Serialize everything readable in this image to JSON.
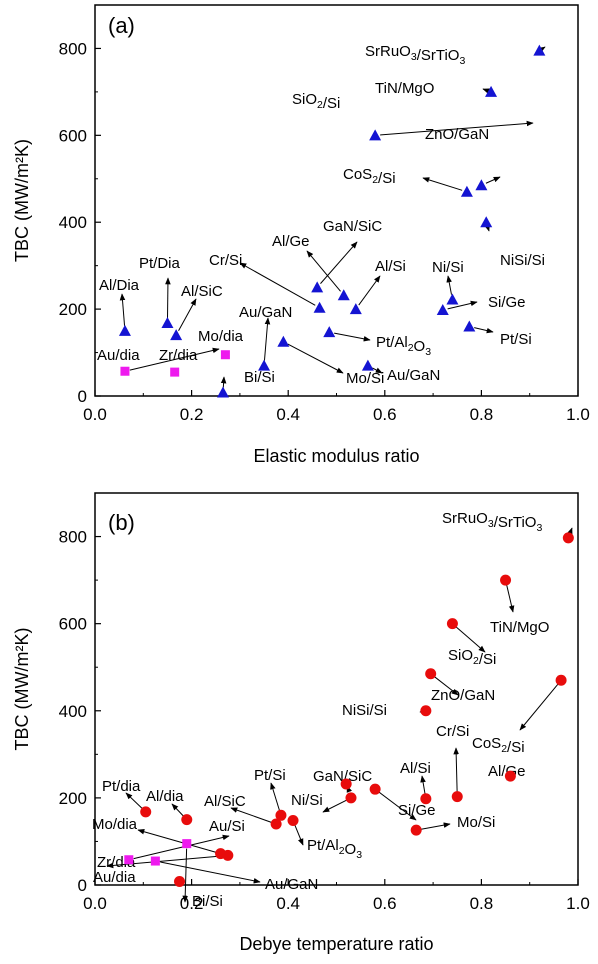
{
  "chart_data": [
    {
      "type": "scatter",
      "panel_label": "(a)",
      "xlabel": "Elastic modulus ratio",
      "ylabel": "TBC (MW/m²K)",
      "xlim": [
        0.0,
        1.0
      ],
      "ylim": [
        0,
        900
      ],
      "xticks": [
        "0.0",
        "0.2",
        "0.4",
        "0.6",
        "0.8",
        "1.0"
      ],
      "yticks": [
        "0",
        "200",
        "400",
        "600",
        "800"
      ],
      "grid": false,
      "series": [
        {
          "marker": "triangle",
          "color": "#1414d2",
          "points": [
            {
              "x": 0.92,
              "y": 795,
              "label": "SrRuO3/SrTiO3"
            },
            {
              "x": 0.82,
              "y": 700,
              "label": "TiN/MgO"
            },
            {
              "x": 0.58,
              "y": 600,
              "label": "SiO2/Si"
            },
            {
              "x": 0.8,
              "y": 485,
              "label": "ZnO/GaN"
            },
            {
              "x": 0.77,
              "y": 470,
              "label": "CoS2/Si"
            },
            {
              "x": 0.81,
              "y": 400,
              "label": "NiSi/Si"
            },
            {
              "x": 0.46,
              "y": 250,
              "label": "Al/Ge"
            },
            {
              "x": 0.515,
              "y": 232,
              "label": "GaN/SiC"
            },
            {
              "x": 0.465,
              "y": 203,
              "label": "Cr/Si"
            },
            {
              "x": 0.54,
              "y": 200,
              "label": "Al/Si"
            },
            {
              "x": 0.74,
              "y": 222,
              "label": "Si/Ge"
            },
            {
              "x": 0.72,
              "y": 198,
              "label": "Ni/Si"
            },
            {
              "x": 0.775,
              "y": 160,
              "label": "Pt/Si"
            },
            {
              "x": 0.485,
              "y": 147,
              "label": "Pt/Al2O3"
            },
            {
              "x": 0.565,
              "y": 70,
              "label": "Au/GaN"
            },
            {
              "x": 0.39,
              "y": 125,
              "label": "Mo/Si"
            },
            {
              "x": 0.35,
              "y": 70,
              "label": "Au/GaN"
            },
            {
              "x": 0.265,
              "y": 8,
              "label": "Bi/Si"
            },
            {
              "x": 0.062,
              "y": 150,
              "label": "Al/Dia"
            },
            {
              "x": 0.15,
              "y": 168,
              "label": "Pt/Dia"
            },
            {
              "x": 0.168,
              "y": 140,
              "label": "Al/SiC"
            }
          ]
        },
        {
          "marker": "square",
          "color": "#ee1aee",
          "points": [
            {
              "x": 0.062,
              "y": 57,
              "label": "Au/dia"
            },
            {
              "x": 0.165,
              "y": 55,
              "label": "Zr/dia"
            },
            {
              "x": 0.27,
              "y": 95,
              "label": "Mo/dia"
            }
          ]
        }
      ],
      "annotations": [
        {
          "base": "SrRuO",
          "sub1": "3",
          "mid": "/SrTiO",
          "sub2": "3"
        },
        {
          "base": "TiN/MgO"
        },
        {
          "base": "SiO",
          "sub1": "2",
          "mid": "/Si"
        },
        {
          "base": "ZnO/GaN"
        },
        {
          "base": "CoS",
          "sub1": "2",
          "mid": "/Si"
        },
        {
          "base": "NiSi/Si"
        },
        {
          "base": "GaN/SiC"
        },
        {
          "base": "Al/Ge"
        },
        {
          "base": "Cr/Si"
        },
        {
          "base": "Al/Si"
        },
        {
          "base": "Ni/Si"
        },
        {
          "base": "Si/Ge"
        },
        {
          "base": "Pt/Si"
        },
        {
          "base": "Pt/Al",
          "sub1": "2",
          "mid": "O",
          "sub2": "3"
        },
        {
          "base": "Au/GaN"
        },
        {
          "base": "Mo/Si"
        },
        {
          "base": "Au/GaN"
        },
        {
          "base": "Bi/Si"
        },
        {
          "base": "Al/Dia"
        },
        {
          "base": "Pt/Dia"
        },
        {
          "base": "Al/SiC"
        },
        {
          "base": "Mo/dia"
        },
        {
          "base": "Au/dia"
        },
        {
          "base": "Zr/dia"
        }
      ]
    },
    {
      "type": "scatter",
      "panel_label": "(b)",
      "xlabel": "Debye temperature ratio",
      "ylabel": "TBC (MW/m²K)",
      "xlim": [
        0.0,
        1.0
      ],
      "ylim": [
        0,
        900
      ],
      "xticks": [
        "0.0",
        "0.2",
        "0.4",
        "0.6",
        "0.8",
        "1.0"
      ],
      "yticks": [
        "0",
        "200",
        "400",
        "600",
        "800"
      ],
      "grid": false,
      "series": [
        {
          "marker": "circle",
          "color": "#e80c0c",
          "points": [
            {
              "x": 0.98,
              "y": 797,
              "label": "SrRuO3/SrTiO3"
            },
            {
              "x": 0.85,
              "y": 700,
              "label": "TiN/MgO"
            },
            {
              "x": 0.74,
              "y": 600,
              "label": "SiO2/Si"
            },
            {
              "x": 0.695,
              "y": 485,
              "label": "ZnO/GaN"
            },
            {
              "x": 0.965,
              "y": 470,
              "label": "CoS2/Si"
            },
            {
              "x": 0.685,
              "y": 400,
              "label": "NiSi/Si"
            },
            {
              "x": 0.86,
              "y": 250,
              "label": "Al/Ge"
            },
            {
              "x": 0.75,
              "y": 203,
              "label": "Cr/Si"
            },
            {
              "x": 0.685,
              "y": 198,
              "label": "Al/Si"
            },
            {
              "x": 0.58,
              "y": 220,
              "label": "Si/Ge"
            },
            {
              "x": 0.52,
              "y": 232,
              "label": "GaN/SiC"
            },
            {
              "x": 0.53,
              "y": 200,
              "label": "Ni/Si"
            },
            {
              "x": 0.665,
              "y": 126,
              "label": "Mo/Si"
            },
            {
              "x": 0.385,
              "y": 160,
              "label": "Pt/Si"
            },
            {
              "x": 0.41,
              "y": 148,
              "label": "Pt/Al2O3"
            },
            {
              "x": 0.375,
              "y": 140,
              "label": "Al/SiC"
            },
            {
              "x": 0.19,
              "y": 150,
              "label": "Al/dia"
            },
            {
              "x": 0.105,
              "y": 168,
              "label": "Pt/dia"
            },
            {
              "x": 0.26,
              "y": 72,
              "label": "Au/Si"
            },
            {
              "x": 0.275,
              "y": 68,
              "label": "Au/GaN"
            },
            {
              "x": 0.175,
              "y": 8,
              "label": "Bi/Si"
            }
          ]
        },
        {
          "marker": "square",
          "color": "#ee1aee",
          "points": [
            {
              "x": 0.07,
              "y": 58,
              "label": "Au/dia"
            },
            {
              "x": 0.125,
              "y": 55,
              "label": "Zr/dia"
            },
            {
              "x": 0.19,
              "y": 95,
              "label": "Mo/dia"
            }
          ]
        }
      ],
      "annotations": [
        {
          "base": "SrRuO",
          "sub1": "3",
          "mid": "/SrTiO",
          "sub2": "3"
        },
        {
          "base": "TiN/MgO"
        },
        {
          "base": "SiO",
          "sub1": "2",
          "mid": "/Si"
        },
        {
          "base": "ZnO/GaN"
        },
        {
          "base": "CoS",
          "sub1": "2",
          "mid": "/Si"
        },
        {
          "base": "NiSi/Si"
        },
        {
          "base": "Al/Ge"
        },
        {
          "base": "Cr/Si"
        },
        {
          "base": "Al/Si"
        },
        {
          "base": "Si/Ge"
        },
        {
          "base": "GaN/SiC"
        },
        {
          "base": "Ni/Si"
        },
        {
          "base": "Mo/Si"
        },
        {
          "base": "Pt/Si"
        },
        {
          "base": "Pt/Al",
          "sub1": "2",
          "mid": "O",
          "sub2": "3"
        },
        {
          "base": "Al/SiC"
        },
        {
          "base": "Al/dia"
        },
        {
          "base": "Pt/dia"
        },
        {
          "base": "Mo/dia"
        },
        {
          "base": "Zr/dia"
        },
        {
          "base": "Au/dia"
        },
        {
          "base": "Au/Si"
        },
        {
          "base": "Au/GaN"
        },
        {
          "base": "Bi/Si"
        }
      ]
    }
  ]
}
